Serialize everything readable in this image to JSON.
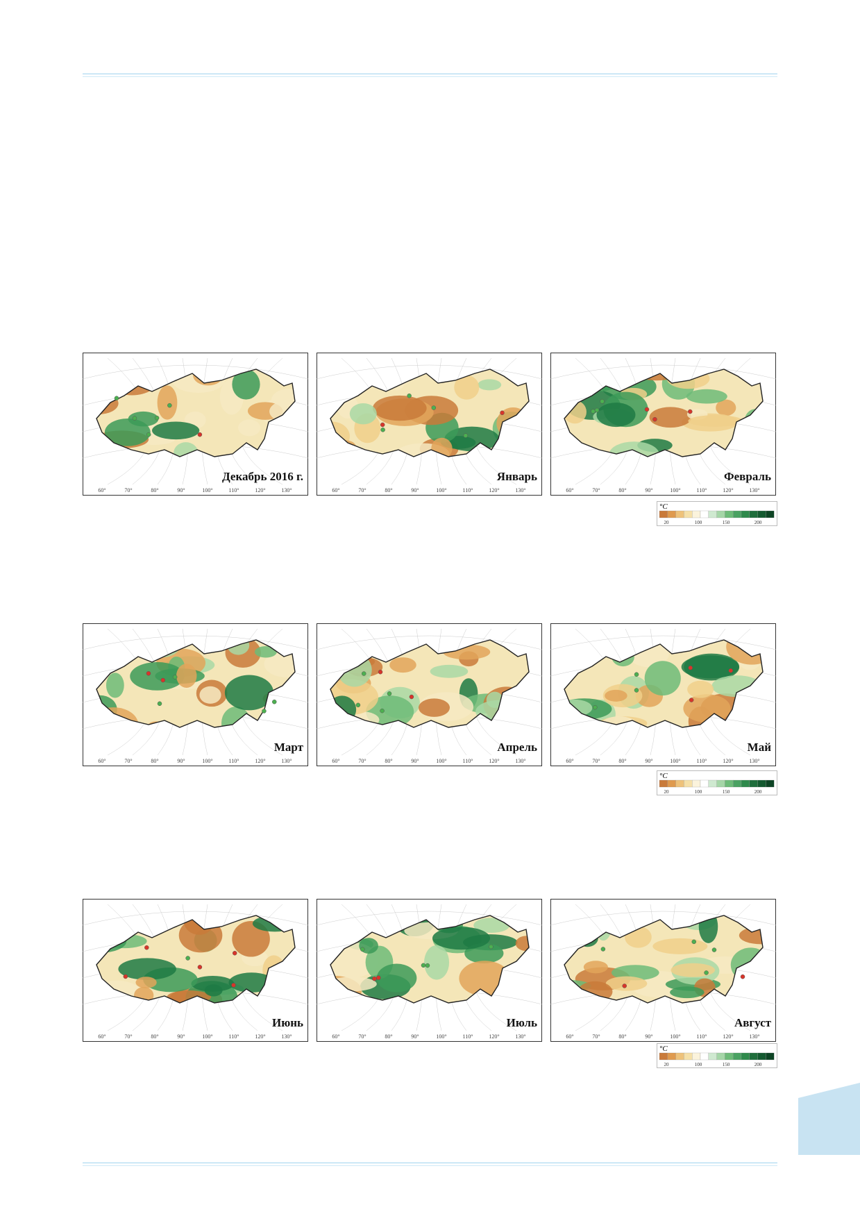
{
  "panels": [
    {
      "label": "Декабрь 2016 г.",
      "lon": [
        "60°",
        "70°",
        "80°",
        "90°",
        "100°",
        "110°",
        "120°",
        "130°"
      ]
    },
    {
      "label": "Январь",
      "lon": [
        "60°",
        "70°",
        "80°",
        "90°",
        "100°",
        "110°",
        "120°",
        "130°"
      ]
    },
    {
      "label": "Февраль",
      "lon": [
        "60°",
        "70°",
        "80°",
        "90°",
        "100°",
        "110°",
        "120°",
        "130°"
      ]
    },
    {
      "label": "Март",
      "lon": [
        "60°",
        "70°",
        "80°",
        "90°",
        "100°",
        "110°",
        "120°",
        "130°"
      ]
    },
    {
      "label": "Апрель",
      "lon": [
        "60°",
        "70°",
        "80°",
        "90°",
        "100°",
        "110°",
        "120°",
        "130°"
      ]
    },
    {
      "label": "Май",
      "lon": [
        "60°",
        "70°",
        "80°",
        "90°",
        "100°",
        "110°",
        "120°",
        "130°"
      ]
    },
    {
      "label": "Июнь",
      "lon": [
        "60°",
        "70°",
        "80°",
        "90°",
        "100°",
        "110°",
        "120°",
        "130°"
      ]
    },
    {
      "label": "Июль",
      "lon": [
        "60°",
        "70°",
        "80°",
        "90°",
        "100°",
        "110°",
        "120°",
        "130°"
      ]
    },
    {
      "label": "Август",
      "lon": [
        "60°",
        "70°",
        "80°",
        "90°",
        "100°",
        "110°",
        "120°",
        "130°"
      ]
    }
  ],
  "legends": [
    {
      "unit": "°C",
      "ticks": [
        "20",
        "100",
        "150",
        "200"
      ]
    },
    {
      "unit": "°C",
      "ticks": [
        "20",
        "100",
        "150",
        "200"
      ]
    },
    {
      "unit": "°C",
      "ticks": [
        "20",
        "100",
        "150",
        "200"
      ]
    }
  ]
}
